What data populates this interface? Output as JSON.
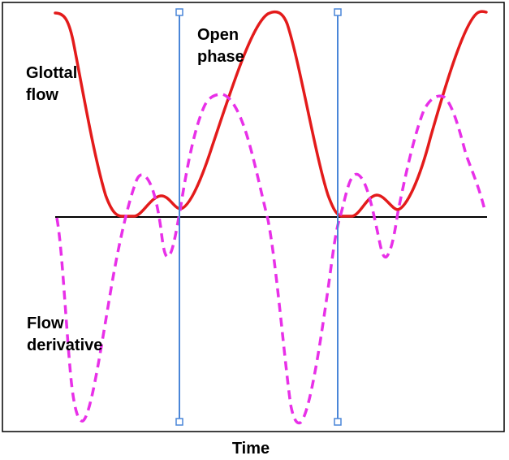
{
  "labels": {
    "glottal_flow_line1": "Glottal",
    "glottal_flow_line2": "flow",
    "open_phase_line1": "Open",
    "open_phase_line2": "phase",
    "flow_derivative_line1": "Flow",
    "flow_derivative_line2": "derivative",
    "x_axis": "Time"
  },
  "colors": {
    "glottal_flow": "#e31b1b",
    "flow_derivative": "#e830e8",
    "marker": "#4a86d8",
    "baseline": "#000000",
    "frame": "#000000"
  },
  "icons": {
    "marker_handle": "square-handle-icon"
  }
}
